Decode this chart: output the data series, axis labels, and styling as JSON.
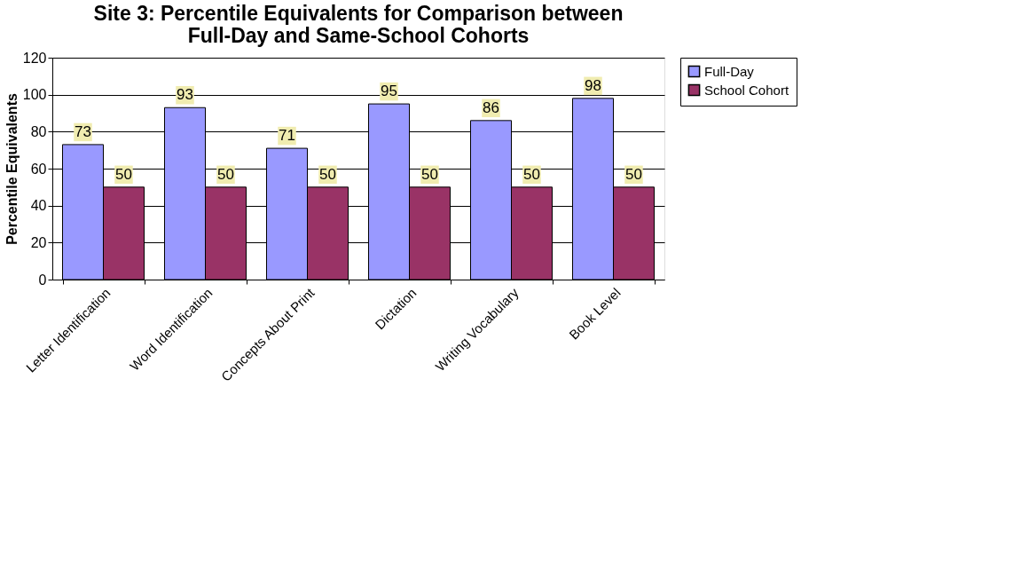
{
  "chart_data": {
    "type": "bar",
    "title": "Site 3:  Percentile Equivalents for Comparison between Full-Day and Same-School Cohorts",
    "ylabel": "Percentile Equivalents",
    "categories": [
      "Letter Identification",
      "Word Identification",
      "Concepts About Print",
      "Dictation",
      "Writing Vocabulary",
      "Book Level"
    ],
    "series": [
      {
        "name": "Full-Day",
        "color": "#9999ff",
        "values": [
          73,
          93,
          71,
          95,
          86,
          98
        ]
      },
      {
        "name": "School Cohort",
        "color": "#993366",
        "values": [
          50,
          50,
          50,
          50,
          50,
          50
        ]
      }
    ],
    "ylim": [
      0,
      120
    ],
    "yticks": [
      0,
      20,
      40,
      60,
      80,
      100,
      120
    ],
    "grid": "y",
    "legend": "right",
    "data_labels": true
  }
}
